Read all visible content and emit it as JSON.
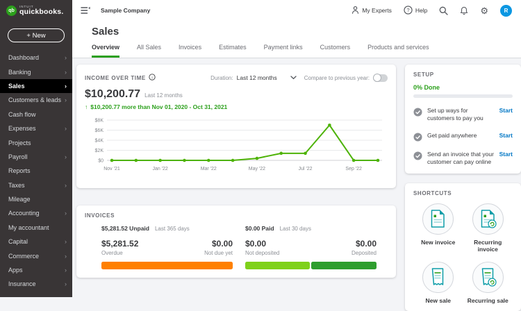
{
  "topbar": {
    "logo_monogram": "qb",
    "brand_prefix": "INTUIT",
    "brand": "quickbooks.",
    "company": "Sample Company",
    "my_experts": "My Experts",
    "help": "Help",
    "avatar": "R",
    "avatar_color": "#0b97e2"
  },
  "sidebar": {
    "new_button": "+ New",
    "items": [
      {
        "label": "Dashboard",
        "chevron": true,
        "active": false
      },
      {
        "label": "Banking",
        "chevron": true,
        "active": false
      },
      {
        "label": "Sales",
        "chevron": true,
        "active": true
      },
      {
        "label": "Customers & leads",
        "chevron": true,
        "active": false
      },
      {
        "label": "Cash flow",
        "chevron": false,
        "active": false
      },
      {
        "label": "Expenses",
        "chevron": true,
        "active": false
      },
      {
        "label": "Projects",
        "chevron": false,
        "active": false
      },
      {
        "label": "Payroll",
        "chevron": true,
        "active": false
      },
      {
        "label": "Reports",
        "chevron": false,
        "active": false
      },
      {
        "label": "Taxes",
        "chevron": true,
        "active": false
      },
      {
        "label": "Mileage",
        "chevron": false,
        "active": false
      },
      {
        "label": "Accounting",
        "chevron": true,
        "active": false
      },
      {
        "label": "My accountant",
        "chevron": false,
        "active": false
      },
      {
        "label": "Capital",
        "chevron": true,
        "active": false
      },
      {
        "label": "Commerce",
        "chevron": true,
        "active": false
      },
      {
        "label": "Apps",
        "chevron": true,
        "active": false
      },
      {
        "label": "Insurance",
        "chevron": true,
        "active": false
      }
    ]
  },
  "page": {
    "title": "Sales",
    "tabs": [
      {
        "label": "Overview",
        "active": true
      },
      {
        "label": "All Sales",
        "active": false
      },
      {
        "label": "Invoices",
        "active": false
      },
      {
        "label": "Estimates",
        "active": false
      },
      {
        "label": "Payment links",
        "active": false
      },
      {
        "label": "Customers",
        "active": false
      },
      {
        "label": "Products and services",
        "active": false
      }
    ]
  },
  "income": {
    "header": "INCOME OVER TIME",
    "duration_label": "Duration:",
    "duration_value": "Last 12 months",
    "compare_label": "Compare to previous year:",
    "toggle_on": false,
    "amount": "$10,200.77",
    "amount_period": "Last 12 months",
    "delta_arrow": "↑",
    "delta": "$10,200.77 more than Nov 01, 2020 - Oct 31, 2021"
  },
  "chart_data": {
    "type": "line",
    "title": "Income over time",
    "x": [
      "Nov '21",
      "Dec '21",
      "Jan '22",
      "Feb '22",
      "Mar '22",
      "Apr '22",
      "May '22",
      "Jun '22",
      "Jul '22",
      "Aug '22",
      "Sep '22",
      "Oct '22"
    ],
    "values": [
      0,
      0,
      0,
      0,
      0,
      0,
      400,
      1400,
      1400,
      7000,
      0,
      0
    ],
    "x_label_every": 2,
    "y_ticks": [
      {
        "value": 0,
        "label": "$0"
      },
      {
        "value": 2000,
        "label": "$2K"
      },
      {
        "value": 4000,
        "label": "$4K"
      },
      {
        "value": 6000,
        "label": "$6K"
      },
      {
        "value": 8000,
        "label": "$8K"
      }
    ],
    "ylim": [
      0,
      8000
    ],
    "line_color": "#4eb307",
    "grid": true,
    "legend": "none",
    "xlabel": "",
    "ylabel": ""
  },
  "invoices": {
    "header": "INVOICES",
    "unpaid_headline": "$5,281.52 Unpaid",
    "unpaid_period": "Last 365 days",
    "paid_headline": "$0.00 Paid",
    "paid_period": "Last 30 days",
    "overdue_amount": "$5,281.52",
    "overdue_label": "Overdue",
    "not_due_amount": "$0.00",
    "not_due_label": "Not due yet",
    "not_deposited_amount": "$0.00",
    "not_deposited_label": "Not deposited",
    "deposited_amount": "$0.00",
    "deposited_label": "Deposited",
    "unpaid_bar_segments": [
      {
        "name": "overdue",
        "color": "#ff8000",
        "pct": 100
      }
    ],
    "paid_bar_segments": [
      {
        "name": "not-deposited",
        "color": "#7fd11b",
        "pct": 49.5
      },
      {
        "name": "deposited",
        "color": "#2e9e2e",
        "pct": 50.5
      }
    ]
  },
  "setup": {
    "header": "SETUP",
    "progress": "0% Done",
    "progress_pct": 0,
    "items": [
      {
        "label": "Set up ways for customers to pay you",
        "action": "Start"
      },
      {
        "label": "Get paid anywhere",
        "action": "Start"
      },
      {
        "label": "Send an invoice that your customer can pay online",
        "action": "Start"
      }
    ]
  },
  "shortcuts": {
    "header": "SHORTCUTS",
    "items": [
      {
        "label": "New invoice",
        "icon": "invoice-icon",
        "recurring": false
      },
      {
        "label": "Recurring invoice",
        "icon": "recurring-invoice-icon",
        "recurring": true
      },
      {
        "label": "New sale",
        "icon": "sale-icon",
        "recurring": false
      },
      {
        "label": "Recurring sale",
        "icon": "recurring-sale-icon",
        "recurring": true
      }
    ]
  },
  "colors": {
    "brand_green": "#2ca01c",
    "chart_line": "#4eb307",
    "overdue_orange": "#ff8000",
    "bar_light_green": "#7fd11b",
    "bar_dark_green": "#2e9e2e",
    "link_blue": "#0077c5",
    "sidebar_bg": "#393536",
    "active_item_bg": "#000000",
    "avatar_blue": "#0b97e2"
  }
}
